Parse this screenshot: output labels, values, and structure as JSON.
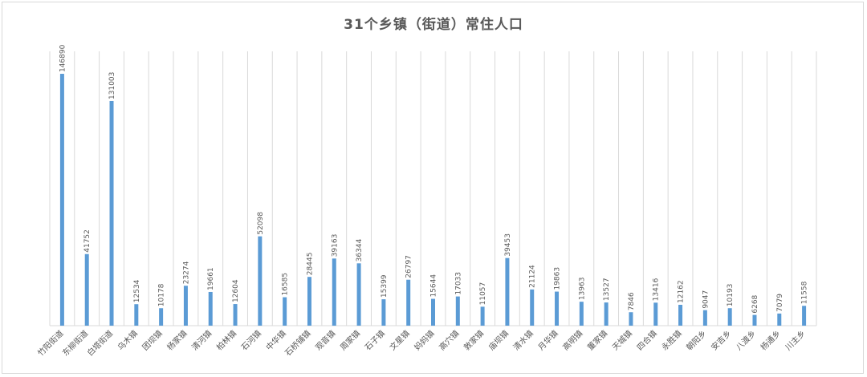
{
  "chart_data": {
    "type": "bar",
    "title": "31个乡镇（街道）常住人口",
    "categories": [
      "竹阳街道",
      "东柳街道",
      "白塔街道",
      "乌木镇",
      "团坝镇",
      "杨家镇",
      "清河镇",
      "柏林镇",
      "石河镇",
      "中华镇",
      "石桥铺镇",
      "观音镇",
      "周家镇",
      "石子镇",
      "文星镇",
      "妈妈镇",
      "高穴镇",
      "敦家镇",
      "庙坝镇",
      "清水镇",
      "月华镇",
      "高明镇",
      "董家镇",
      "天城镇",
      "四合镇",
      "永胜镇",
      "朝阳乡",
      "安吉乡",
      "八渡乡",
      "杨通乡",
      "川主乡"
    ],
    "values": [
      146890,
      41752,
      131003,
      12534,
      10178,
      23274,
      19661,
      12604,
      52098,
      16585,
      28445,
      39163,
      36344,
      15399,
      26797,
      15644,
      17033,
      11057,
      39453,
      21124,
      19863,
      13963,
      13527,
      7846,
      13416,
      12162,
      9047,
      10193,
      6268,
      7079,
      11558
    ],
    "value_labels": [
      "146890",
      "41752",
      "131003",
      "12534",
      "10178",
      "23274",
      "19661",
      "12604",
      "52098",
      "16585",
      "28445",
      "39163",
      "36344",
      "15399",
      "26797",
      "15644",
      "17033",
      "11057",
      "39453",
      "21124",
      "19863",
      "13963",
      "13527",
      "7846",
      "13416",
      "12162",
      "9047",
      "10193",
      "6268",
      "7079",
      "11558"
    ],
    "ylim": [
      0,
      160000
    ],
    "grid": "vertical",
    "legend": "none",
    "bar_color": "#5b9bd5",
    "grid_color": "#d9d9d9",
    "text_color": "#595959"
  }
}
